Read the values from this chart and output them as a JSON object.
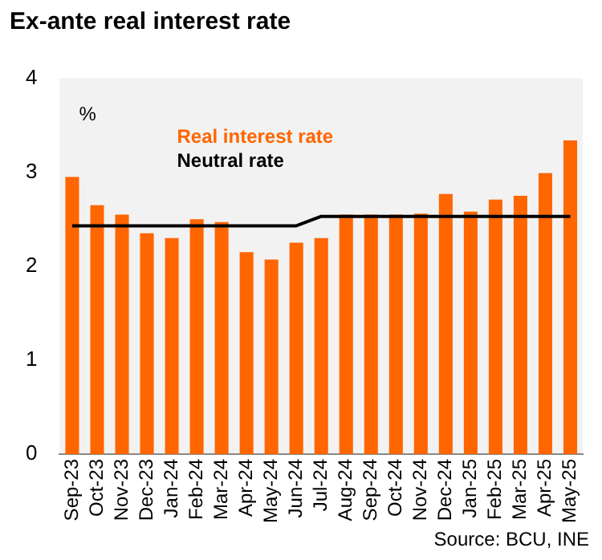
{
  "chart_data": {
    "type": "bar",
    "title": "Ex-ante real interest rate",
    "ylabel": "%",
    "categories": [
      "Sep-23",
      "Oct-23",
      "Nov-23",
      "Dec-23",
      "Jan-24",
      "Feb-24",
      "Mar-24",
      "Apr-24",
      "May-24",
      "Jun-24",
      "Jul-24",
      "Aug-24",
      "Sep-24",
      "Oct-24",
      "Nov-24",
      "Dec-24",
      "Jan-25",
      "Feb-25",
      "Mar-25",
      "Apr-25",
      "May-25"
    ],
    "series": [
      {
        "name": "Real interest rate",
        "color": "#ff6600",
        "values": [
          2.95,
          2.65,
          2.55,
          2.35,
          2.3,
          2.5,
          2.47,
          2.15,
          2.07,
          2.25,
          2.3,
          2.55,
          2.55,
          2.55,
          2.56,
          2.77,
          2.58,
          2.71,
          2.75,
          2.99,
          3.34
        ]
      },
      {
        "name": "Neutral rate",
        "type": "line",
        "color": "#000000",
        "values": [
          2.43,
          2.43,
          2.43,
          2.43,
          2.43,
          2.43,
          2.43,
          2.43,
          2.43,
          2.43,
          2.53,
          2.53,
          2.53,
          2.53,
          2.53,
          2.53,
          2.53,
          2.53,
          2.53,
          2.53,
          2.53
        ]
      }
    ],
    "ylim": [
      0,
      4
    ],
    "yticks": [
      0,
      1,
      2,
      3,
      4
    ],
    "grid": false,
    "legend": "top left",
    "marker": "none",
    "annotations": [
      "Source: BCU, INE"
    ]
  }
}
